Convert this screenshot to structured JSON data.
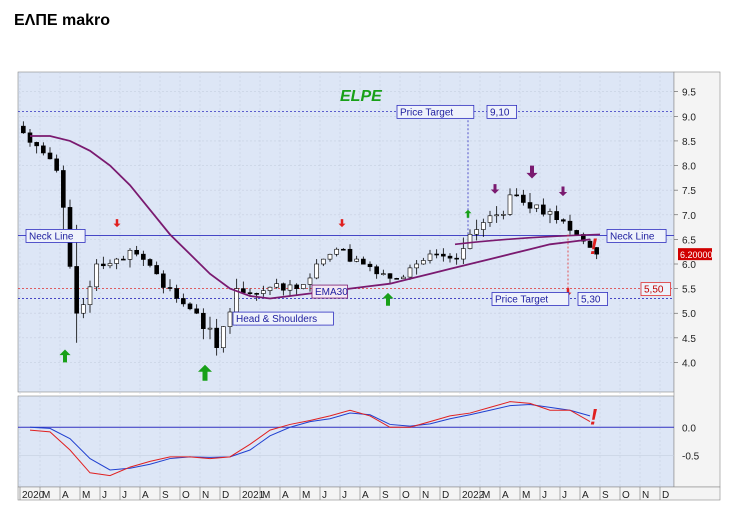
{
  "page_title": "ΕΛΠΕ makro",
  "chart_data": {
    "type": "candlestick",
    "title": "ELPE",
    "price_axis": {
      "ylim": [
        3.4,
        9.9
      ],
      "ticks": [
        "4.0",
        "4.5",
        "5.0",
        "5.5",
        "6.0",
        "6.5",
        "7.0",
        "7.5",
        "8.0",
        "8.5",
        "9.0",
        "9.5"
      ]
    },
    "macd_axis": {
      "ylim": [
        -1.05,
        0.55
      ],
      "ticks": [
        "0.0",
        "-0.5"
      ]
    },
    "time_axis": {
      "start": "2020-01",
      "labels": [
        "2020",
        "M",
        "A",
        "M",
        "J",
        "J",
        "A",
        "S",
        "O",
        "N",
        "D",
        "2021",
        "M",
        "A",
        "M",
        "J",
        "J",
        "A",
        "S",
        "O",
        "N",
        "D",
        "2022",
        "M",
        "A",
        "M",
        "J",
        "J",
        "A",
        "S",
        "O",
        "N",
        "D"
      ]
    },
    "last_price_label": "6.20000",
    "candles_monthly_ohlc": [
      [
        8.8,
        8.9,
        8.2,
        8.4
      ],
      [
        8.4,
        8.5,
        7.8,
        7.9
      ],
      [
        7.9,
        8.0,
        4.4,
        5.0
      ],
      [
        5.0,
        6.1,
        4.9,
        6.0
      ],
      [
        6.0,
        6.3,
        5.7,
        6.1
      ],
      [
        6.1,
        6.65,
        5.9,
        6.2
      ],
      [
        6.2,
        6.3,
        5.6,
        5.8
      ],
      [
        5.8,
        5.9,
        5.2,
        5.3
      ],
      [
        5.3,
        5.4,
        4.9,
        5.0
      ],
      [
        5.0,
        5.1,
        4.1,
        4.3
      ],
      [
        4.3,
        5.7,
        4.2,
        5.5
      ],
      [
        5.5,
        5.8,
        5.2,
        5.4
      ],
      [
        5.4,
        5.7,
        5.25,
        5.6
      ],
      [
        5.6,
        5.9,
        5.3,
        5.5
      ],
      [
        5.5,
        6.1,
        5.4,
        6.0
      ],
      [
        6.0,
        6.4,
        5.8,
        6.3
      ],
      [
        6.3,
        6.65,
        6.0,
        6.1
      ],
      [
        6.1,
        6.2,
        5.7,
        5.8
      ],
      [
        5.8,
        6.0,
        5.5,
        5.7
      ],
      [
        5.7,
        6.2,
        5.6,
        6.0
      ],
      [
        6.0,
        6.3,
        5.8,
        6.2
      ],
      [
        6.2,
        6.4,
        5.9,
        6.1
      ],
      [
        6.1,
        6.9,
        6.0,
        6.7
      ],
      [
        6.7,
        7.2,
        6.4,
        7.0
      ],
      [
        7.0,
        7.6,
        6.8,
        7.4
      ],
      [
        7.4,
        7.8,
        7.0,
        7.2
      ],
      [
        7.2,
        7.4,
        6.6,
        6.9
      ],
      [
        6.9,
        7.0,
        6.4,
        6.6
      ],
      [
        6.6,
        6.7,
        6.1,
        6.2
      ]
    ],
    "ema30_monthly": [
      8.6,
      8.6,
      8.5,
      8.3,
      8.0,
      7.6,
      7.1,
      6.6,
      6.2,
      5.8,
      5.5,
      5.35,
      5.3,
      5.35,
      5.4,
      5.45,
      5.5,
      5.55,
      5.6,
      5.7,
      5.8,
      5.9,
      6.0,
      6.1,
      6.2,
      6.3,
      6.4,
      6.45,
      6.5
    ],
    "macd_monthly": [
      -0.05,
      -0.08,
      -0.4,
      -0.8,
      -0.85,
      -0.7,
      -0.6,
      -0.52,
      -0.52,
      -0.55,
      -0.52,
      -0.3,
      -0.05,
      0.05,
      0.12,
      0.2,
      0.3,
      0.2,
      0.0,
      0.0,
      0.1,
      0.2,
      0.25,
      0.35,
      0.45,
      0.42,
      0.3,
      0.3,
      0.1
    ],
    "signal_monthly": [
      0.0,
      -0.02,
      -0.2,
      -0.55,
      -0.75,
      -0.72,
      -0.65,
      -0.55,
      -0.52,
      -0.53,
      -0.52,
      -0.4,
      -0.15,
      0.0,
      0.1,
      0.15,
      0.25,
      0.22,
      0.05,
      0.02,
      0.06,
      0.15,
      0.22,
      0.3,
      0.38,
      0.4,
      0.35,
      0.3,
      0.2
    ],
    "hlines": [
      {
        "value": 9.1,
        "color": "#3030c0",
        "style": "dotted",
        "label": "9,10",
        "tag": "Price Target"
      },
      {
        "value": 6.58,
        "color": "#3030c0",
        "style": "solid",
        "label": "Neck Line"
      },
      {
        "value": 5.5,
        "color": "#e03030",
        "style": "dotted",
        "label": "5,50"
      },
      {
        "value": 5.3,
        "color": "#3030c0",
        "style": "dotted",
        "label": "5,30",
        "tag": "Price Target"
      }
    ],
    "annotations": {
      "ema_label": "EMA30",
      "pattern_label": "Head & Shoulders",
      "neck_line_left": "Neck Line",
      "neck_line_right": "Neck Line",
      "exclamation": "!"
    },
    "colors": {
      "plot_bg": "#dde6f6",
      "axis_bg": "#f4f4f4",
      "up_candle": "#ffffff",
      "down_candle": "#000000",
      "ema": "#7a1a70",
      "macd": "#e02020",
      "signal": "#2040d0",
      "title": "#18a018",
      "green_arrow": "#18a018",
      "red_arrow": "#e02020",
      "purple_arrow": "#7a1a70",
      "last_price_bg": "#d00000"
    }
  }
}
